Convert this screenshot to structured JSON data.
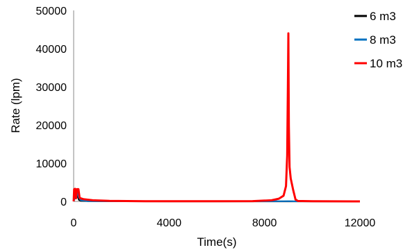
{
  "chart_data": {
    "type": "line",
    "title": "",
    "xlabel": "Time(s)",
    "ylabel": "Rate (lpm)",
    "xlim": [
      0,
      12000
    ],
    "ylim": [
      0,
      50000
    ],
    "x_ticks": [
      0,
      4000,
      8000,
      12000
    ],
    "y_ticks": [
      0,
      10000,
      20000,
      30000,
      40000,
      50000
    ],
    "grid": false,
    "legend_position": "top-right",
    "series": [
      {
        "name": "6 m3",
        "color": "#000000",
        "points": [
          [
            0,
            0
          ],
          [
            60,
            1200
          ],
          [
            110,
            2600
          ],
          [
            160,
            1400
          ],
          [
            220,
            400
          ],
          [
            300,
            120
          ],
          [
            600,
            60
          ],
          [
            1000,
            30
          ],
          [
            2000,
            10
          ],
          [
            4000,
            5
          ],
          [
            8000,
            5
          ],
          [
            12000,
            0
          ]
        ]
      },
      {
        "name": "8 m3",
        "color": "#0070C0",
        "points": [
          [
            0,
            0
          ],
          [
            80,
            1500
          ],
          [
            140,
            2800
          ],
          [
            200,
            1200
          ],
          [
            300,
            300
          ],
          [
            600,
            80
          ],
          [
            1000,
            40
          ],
          [
            2000,
            15
          ],
          [
            5000,
            10
          ],
          [
            8000,
            10
          ],
          [
            8800,
            30
          ],
          [
            9000,
            60
          ],
          [
            9200,
            20
          ],
          [
            12000,
            0
          ]
        ]
      },
      {
        "name": "10 m3",
        "color": "#FF0000",
        "points": [
          [
            0,
            0
          ],
          [
            20,
            3200
          ],
          [
            60,
            3300
          ],
          [
            100,
            800
          ],
          [
            140,
            3200
          ],
          [
            200,
            3200
          ],
          [
            250,
            900
          ],
          [
            400,
            600
          ],
          [
            800,
            300
          ],
          [
            1500,
            120
          ],
          [
            3000,
            50
          ],
          [
            6000,
            40
          ],
          [
            7500,
            80
          ],
          [
            8300,
            300
          ],
          [
            8600,
            700
          ],
          [
            8800,
            1500
          ],
          [
            8900,
            4000
          ],
          [
            8950,
            12000
          ],
          [
            8980,
            30000
          ],
          [
            9000,
            44000
          ],
          [
            9020,
            20000
          ],
          [
            9050,
            9000
          ],
          [
            9100,
            6000
          ],
          [
            9200,
            3000
          ],
          [
            9300,
            500
          ],
          [
            9400,
            100
          ],
          [
            10000,
            30
          ],
          [
            12000,
            0
          ]
        ]
      }
    ]
  }
}
